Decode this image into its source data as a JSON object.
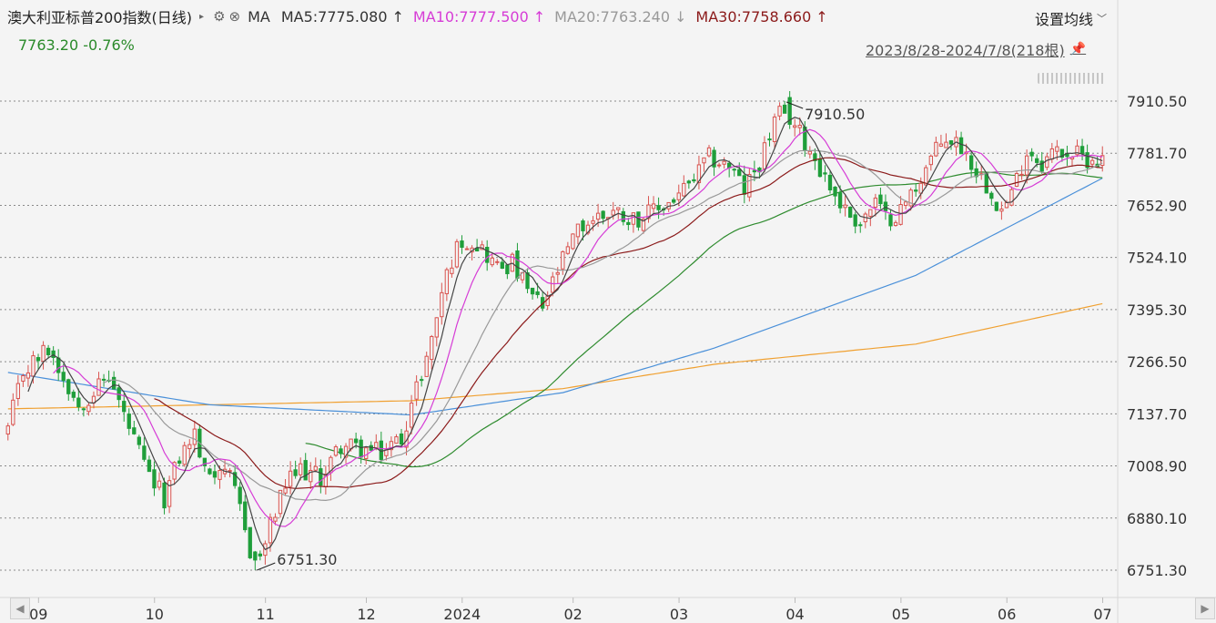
{
  "header": {
    "title": "澳大利亚标普200指数(日线)",
    "ma_label": "MA",
    "ma": [
      {
        "label": "MA5:7775.080",
        "arrow": "↑",
        "color": "#333333"
      },
      {
        "label": "MA10:7777.500",
        "arrow": "↑",
        "color": "#d63cd6"
      },
      {
        "label": "MA20:7763.240",
        "arrow": "↓",
        "color": "#999999"
      },
      {
        "label": "MA30:7758.660",
        "arrow": "↑",
        "color": "#8b1a1a"
      }
    ],
    "price_change": "7763.20 -0.76%",
    "settings": "设置均线",
    "range": "2023/8/28-2024/7/8(218根)"
  },
  "chart_data": {
    "type": "candlestick",
    "yaxis_ticks": [
      7910.5,
      7781.7,
      7652.9,
      7524.1,
      7395.3,
      7266.5,
      7137.7,
      7008.9,
      6880.1,
      6751.3
    ],
    "yaxis_labels": [
      "7910.50",
      "7781.70",
      "7652.90",
      "7524.10",
      "7395.30",
      "7266.50",
      "7137.70",
      "7008.90",
      "6880.10",
      "6751.30"
    ],
    "ylim": [
      6751.3,
      7910.5
    ],
    "xaxis_labels": [
      "09",
      "10",
      "11",
      "12",
      "2024",
      "02",
      "03",
      "04",
      "05",
      "06",
      "07"
    ],
    "annotations": [
      {
        "text": "7910.50",
        "type": "high"
      },
      {
        "text": "6751.30",
        "type": "low"
      }
    ],
    "colors": {
      "up": "#d9534f",
      "down": "#1f9e3a",
      "ma5": "#444444",
      "ma10": "#d63cd6",
      "ma20": "#999999",
      "ma30": "#8b1a1a",
      "ma60": "#2e8b2e",
      "ma120": "#4a90d9",
      "ma250": "#f0a030"
    },
    "keyframes": [
      [
        0,
        7100
      ],
      [
        3,
        7240
      ],
      [
        8,
        7300
      ],
      [
        14,
        7160
      ],
      [
        20,
        7230
      ],
      [
        25,
        7070
      ],
      [
        28,
        6980
      ],
      [
        31,
        6930
      ],
      [
        34,
        7030
      ],
      [
        37,
        7090
      ],
      [
        39,
        6990
      ],
      [
        43,
        7010
      ],
      [
        46,
        6900
      ],
      [
        48,
        6800
      ],
      [
        50,
        6780
      ],
      [
        52,
        6860
      ],
      [
        55,
        6960
      ],
      [
        58,
        7000
      ],
      [
        62,
        6980
      ],
      [
        66,
        7060
      ],
      [
        70,
        7050
      ],
      [
        74,
        7040
      ],
      [
        78,
        7080
      ],
      [
        81,
        7200
      ],
      [
        84,
        7320
      ],
      [
        86,
        7440
      ],
      [
        88,
        7520
      ],
      [
        90,
        7570
      ],
      [
        93,
        7560
      ],
      [
        97,
        7500
      ],
      [
        100,
        7510
      ],
      [
        103,
        7440
      ],
      [
        106,
        7400
      ],
      [
        109,
        7490
      ],
      [
        113,
        7590
      ],
      [
        116,
        7620
      ],
      [
        120,
        7640
      ],
      [
        124,
        7620
      ],
      [
        127,
        7630
      ],
      [
        131,
        7660
      ],
      [
        135,
        7700
      ],
      [
        139,
        7770
      ],
      [
        143,
        7750
      ],
      [
        146,
        7690
      ],
      [
        149,
        7760
      ],
      [
        152,
        7860
      ],
      [
        154,
        7890
      ],
      [
        157,
        7830
      ],
      [
        160,
        7770
      ],
      [
        163,
        7700
      ],
      [
        166,
        7640
      ],
      [
        169,
        7610
      ],
      [
        172,
        7660
      ],
      [
        174,
        7620
      ],
      [
        177,
        7640
      ],
      [
        180,
        7700
      ],
      [
        183,
        7770
      ],
      [
        186,
        7820
      ],
      [
        189,
        7800
      ],
      [
        192,
        7740
      ],
      [
        195,
        7690
      ],
      [
        197,
        7640
      ],
      [
        199,
        7680
      ],
      [
        202,
        7790
      ],
      [
        205,
        7760
      ],
      [
        208,
        7790
      ],
      [
        211,
        7780
      ],
      [
        214,
        7770
      ],
      [
        217,
        7763
      ]
    ],
    "ma120_anchors": [
      [
        0,
        7240
      ],
      [
        40,
        7160
      ],
      [
        80,
        7135
      ],
      [
        110,
        7190
      ],
      [
        140,
        7300
      ],
      [
        180,
        7480
      ],
      [
        217,
        7720
      ]
    ],
    "ma250_anchors": [
      [
        0,
        7150
      ],
      [
        40,
        7160
      ],
      [
        80,
        7170
      ],
      [
        110,
        7200
      ],
      [
        140,
        7260
      ],
      [
        180,
        7310
      ],
      [
        217,
        7410
      ]
    ]
  }
}
